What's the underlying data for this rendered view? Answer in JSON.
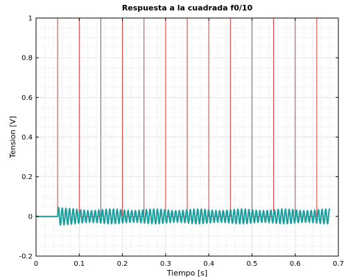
{
  "chart_data": {
    "type": "line",
    "title": "Respuesta a la cuadrada f0/10",
    "xlabel": "Tiempo [s]",
    "ylabel": "Tension [V]",
    "xlim": [
      0,
      0.7
    ],
    "ylim": [
      -0.2,
      1
    ],
    "xticks": [
      0,
      0.1,
      0.2,
      0.3,
      0.4,
      0.5,
      0.6,
      0.7
    ],
    "xtick_labels": [
      "0",
      "0.1",
      "0.2",
      "0.3",
      "0.4",
      "0.5",
      "0.6",
      "0.7"
    ],
    "yticks": [
      -0.2,
      0,
      0.2,
      0.4,
      0.6,
      0.8,
      1
    ],
    "ytick_labels": [
      "-0.2",
      "0",
      "0.2",
      "0.4",
      "0.6",
      "0.8",
      "1"
    ],
    "grid": true,
    "grid_minor": true,
    "series": [
      {
        "kind": "square",
        "color": "#e03030",
        "x": [
          0,
          0.05,
          0.05,
          0.1,
          0.1,
          0.15,
          0.15,
          0.2,
          0.2,
          0.25,
          0.25,
          0.3,
          0.3,
          0.35,
          0.35,
          0.4,
          0.4,
          0.45,
          0.45,
          0.5,
          0.5,
          0.55,
          0.55,
          0.6,
          0.6,
          0.65,
          0.65,
          0.68
        ],
        "y": [
          0,
          0,
          1,
          1,
          0,
          0,
          1,
          1,
          0,
          0,
          1,
          1,
          0,
          0,
          1,
          1,
          0,
          0,
          1,
          1,
          0,
          0,
          1,
          1,
          0,
          0,
          1,
          1
        ]
      },
      {
        "kind": "response",
        "color": "#1a9e9e",
        "start": 0.05,
        "end": 0.68,
        "amplitude": 0.033,
        "frequency": 118
      }
    ]
  }
}
